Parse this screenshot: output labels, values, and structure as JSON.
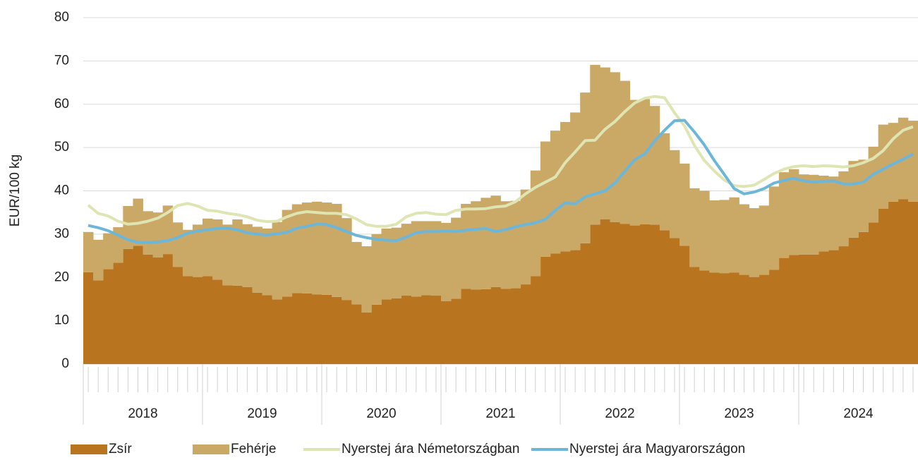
{
  "chart_data": {
    "type": "bar",
    "stacked": true,
    "y_label": "EUR/100 kg",
    "ylim": [
      0,
      80
    ],
    "yticks": [
      0,
      10,
      20,
      30,
      40,
      50,
      60,
      70,
      80
    ],
    "grid": true,
    "legend": "bottom",
    "x_groups": [
      "2018",
      "2019",
      "2020",
      "2021",
      "2022",
      "2023",
      "2024"
    ],
    "categories": [
      null,
      null,
      null,
      null,
      null,
      null,
      null,
      null,
      null,
      null,
      null,
      null,
      null,
      null,
      null,
      null,
      null,
      null,
      null,
      null,
      null,
      null,
      null,
      null,
      null,
      null,
      null,
      null,
      null,
      null,
      null,
      null,
      null,
      null,
      null,
      null,
      null,
      null,
      null,
      null,
      null,
      null,
      null,
      null,
      null,
      null,
      null,
      null,
      null,
      null,
      null,
      null,
      null,
      null,
      null,
      null,
      null,
      null,
      null,
      null,
      null,
      null,
      null,
      null,
      null,
      null,
      null,
      null,
      null,
      null,
      null,
      null,
      null,
      null,
      null,
      null,
      null,
      null,
      null,
      null,
      null,
      null,
      null,
      null
    ],
    "series": [
      {
        "name": "Zsír",
        "type": "bar",
        "color": "#b8741f",
        "values": [
          21.2,
          19.3,
          21.9,
          23.4,
          26.6,
          27.3,
          25.3,
          24.6,
          25.4,
          22.4,
          20.3,
          20.1,
          20.3,
          19.5,
          18.2,
          18.1,
          17.8,
          16.5,
          15.9,
          14.9,
          15.6,
          16.4,
          16.3,
          16.1,
          16.0,
          15.5,
          14.8,
          13.8,
          11.9,
          13.7,
          14.9,
          15.2,
          15.8,
          15.6,
          15.9,
          15.8,
          14.5,
          15.1,
          17.4,
          17.2,
          17.3,
          17.8,
          17.4,
          17.5,
          18.4,
          20.3,
          24.8,
          25.5,
          26.0,
          26.3,
          27.9,
          32.2,
          33.4,
          32.8,
          32.4,
          32.0,
          32.3,
          32.2,
          30.9,
          29.1,
          27.3,
          22.4,
          21.6,
          21.1,
          21.0,
          21.1,
          20.6,
          20.1,
          20.6,
          21.8,
          24.5,
          25.2,
          25.3,
          25.3,
          26.0,
          26.3,
          27.2,
          29.2,
          30.5,
          32.7,
          35.9,
          37.5,
          38.1,
          37.5
        ]
      },
      {
        "name": "Fehérje",
        "type": "bar",
        "color": "#caa866",
        "values": [
          9.3,
          9.4,
          8.3,
          8.2,
          9.9,
          10.9,
          10.0,
          10.4,
          11.2,
          10.3,
          10.7,
          12.1,
          13.3,
          13.9,
          14.0,
          15.3,
          14.5,
          15.2,
          15.4,
          17.9,
          20.0,
          20.5,
          21.0,
          21.4,
          21.3,
          21.5,
          18.9,
          14.4,
          15.3,
          16.3,
          16.4,
          16.3,
          16.6,
          17.4,
          17.1,
          17.2,
          18.1,
          18.7,
          19.6,
          20.4,
          21.1,
          21.1,
          20.2,
          20.2,
          21.9,
          24.4,
          26.6,
          28.4,
          29.9,
          31.8,
          34.8,
          36.9,
          35.1,
          34.6,
          33.0,
          29.0,
          28.9,
          27.4,
          22.4,
          20.3,
          19.0,
          18.2,
          18.4,
          16.7,
          16.9,
          17.4,
          16.3,
          15.9,
          16.0,
          19.2,
          19.8,
          19.8,
          18.5,
          18.4,
          17.5,
          17.0,
          17.3,
          17.7,
          16.7,
          17.5,
          19.4,
          18.2,
          18.8,
          18.7
        ]
      },
      {
        "name": "Nyerstej ára Németországban",
        "type": "line",
        "color": "#dfe4b3",
        "values": [
          36.7,
          34.8,
          34.2,
          33.0,
          32.3,
          32.5,
          33.0,
          33.7,
          35.0,
          36.6,
          37.1,
          36.5,
          35.5,
          35.3,
          34.8,
          34.5,
          34.0,
          33.2,
          32.9,
          33.0,
          34.0,
          34.8,
          35.2,
          35.0,
          34.8,
          34.8,
          34.5,
          33.5,
          32.2,
          31.8,
          31.8,
          32.3,
          34.0,
          34.8,
          35.0,
          34.6,
          34.5,
          35.5,
          35.8,
          35.8,
          35.9,
          36.3,
          36.5,
          37.5,
          39.3,
          40.8,
          42.0,
          43.2,
          46.5,
          49.0,
          51.6,
          51.7,
          54.2,
          56.0,
          58.3,
          60.3,
          61.4,
          61.8,
          61.5,
          58.0,
          55.0,
          50.5,
          47.0,
          44.6,
          42.5,
          41.2,
          41.0,
          41.3,
          42.6,
          44.0,
          45.0,
          45.6,
          45.8,
          45.6,
          45.8,
          45.7,
          45.5,
          45.8,
          46.5,
          47.5,
          49.3,
          52.0,
          54.0,
          54.8
        ]
      },
      {
        "name": "Nyerstej ára Magyarországon",
        "type": "line",
        "color": "#6cb6d9",
        "values": [
          32.0,
          31.5,
          30.8,
          29.8,
          28.7,
          28.1,
          28.0,
          28.2,
          28.5,
          29.2,
          30.2,
          30.7,
          31.0,
          31.3,
          31.4,
          31.0,
          30.3,
          30.0,
          29.8,
          30.1,
          30.4,
          31.4,
          31.8,
          32.3,
          32.2,
          31.5,
          30.6,
          29.7,
          29.2,
          28.8,
          28.6,
          28.5,
          29.3,
          30.3,
          30.6,
          30.6,
          30.7,
          30.6,
          30.9,
          31.1,
          31.3,
          30.6,
          31.0,
          31.7,
          32.2,
          32.6,
          33.4,
          35.5,
          37.2,
          37.0,
          38.6,
          39.3,
          40.0,
          41.8,
          44.5,
          47.2,
          48.5,
          51.5,
          54.0,
          56.2,
          56.3,
          53.6,
          50.6,
          47.0,
          43.8,
          40.5,
          39.3,
          39.7,
          40.5,
          41.8,
          42.4,
          42.9,
          42.3,
          42.0,
          42.2,
          42.3,
          41.6,
          41.6,
          42.0,
          43.8,
          45.0,
          46.2,
          47.3,
          48.5
        ]
      }
    ]
  }
}
